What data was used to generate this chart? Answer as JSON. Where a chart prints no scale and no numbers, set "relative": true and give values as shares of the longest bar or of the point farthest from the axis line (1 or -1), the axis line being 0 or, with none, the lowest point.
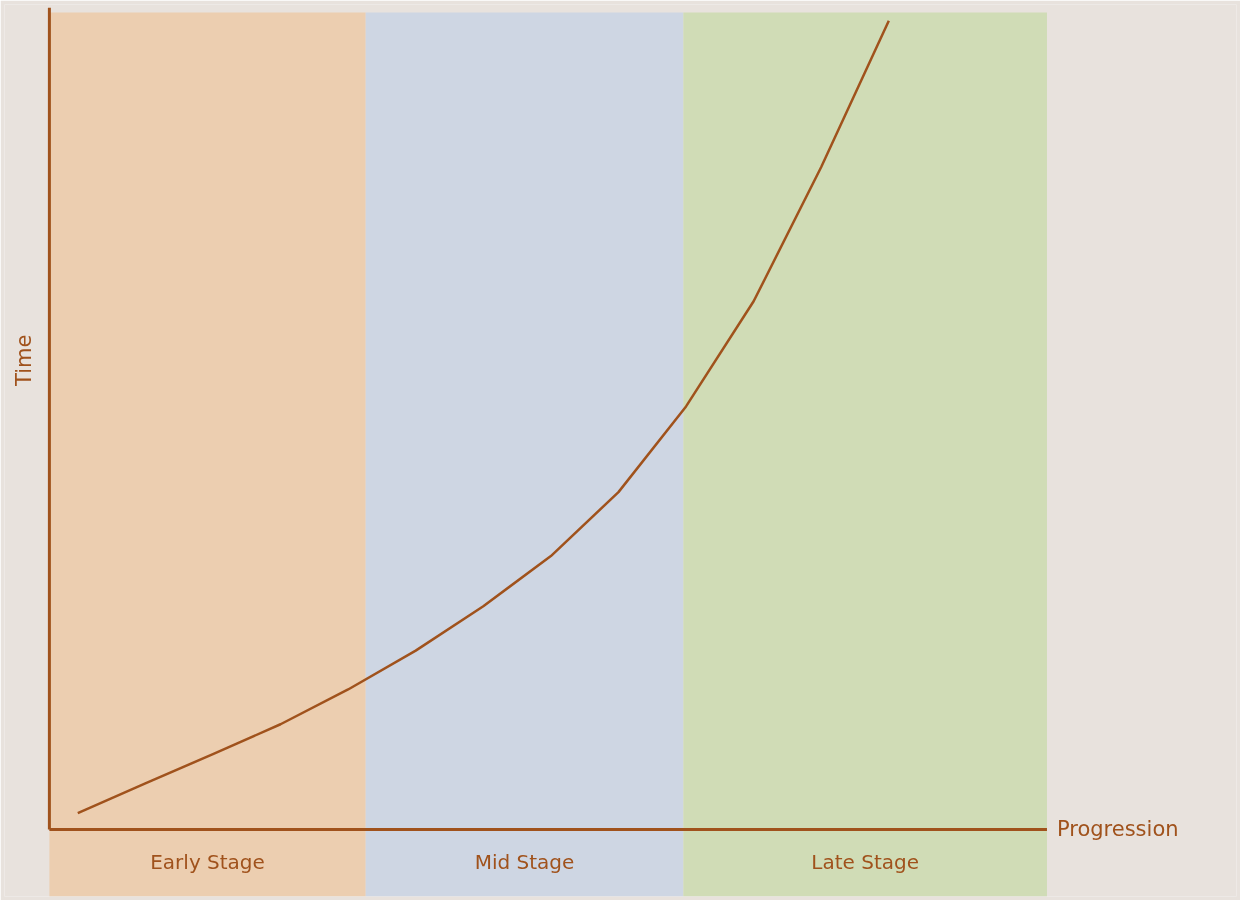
{
  "chart_data": {
    "type": "line",
    "relative": true,
    "ylabel": "Time",
    "categories": [
      null,
      null,
      null,
      null,
      null,
      null,
      null,
      null,
      null,
      null,
      null,
      null,
      null
    ],
    "series": [
      {
        "color": "#a0521c",
        "values": [
          0.02,
          0.057,
          0.093,
          0.13,
          0.173,
          0.221,
          0.276,
          0.338,
          0.417,
          0.523,
          0.653,
          0.819,
          1.0
        ]
      }
    ],
    "annotations": [
      "Early Stage",
      "Mid Stage",
      "Late Stage",
      "Progression"
    ]
  }
}
